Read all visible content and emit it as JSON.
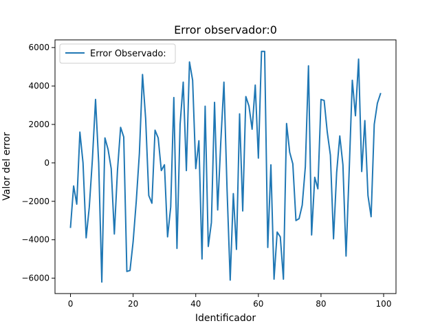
{
  "chart_data": {
    "type": "line",
    "title": "Error observador:0",
    "xlabel": "Identificador",
    "ylabel": "Valor del error",
    "xlim": [
      -4.95,
      103.95
    ],
    "ylim": [
      -6800,
      6400
    ],
    "xticks": [
      0,
      20,
      40,
      60,
      80,
      100
    ],
    "yticks": [
      -6000,
      -4000,
      -2000,
      0,
      2000,
      4000,
      6000
    ],
    "xtick_labels": [
      "0",
      "20",
      "40",
      "60",
      "80",
      "100"
    ],
    "ytick_labels": [
      "−6000",
      "−4000",
      "−2000",
      "0",
      "2000",
      "4000",
      "6000"
    ],
    "grid": false,
    "legend_position": "top-left",
    "series": [
      {
        "name": "Error Observado:",
        "color": "#1f77b4",
        "x": [
          0,
          1,
          2,
          3,
          4,
          5,
          6,
          7,
          8,
          9,
          10,
          11,
          12,
          13,
          14,
          15,
          16,
          17,
          18,
          19,
          20,
          21,
          22,
          23,
          24,
          25,
          26,
          27,
          28,
          29,
          30,
          31,
          32,
          33,
          34,
          35,
          36,
          37,
          38,
          39,
          40,
          41,
          42,
          43,
          44,
          45,
          46,
          47,
          48,
          49,
          50,
          51,
          52,
          53,
          54,
          55,
          56,
          57,
          58,
          59,
          60,
          61,
          62,
          63,
          64,
          65,
          66,
          67,
          68,
          69,
          70,
          71,
          72,
          73,
          74,
          75,
          76,
          77,
          78,
          79,
          80,
          81,
          82,
          83,
          84,
          85,
          86,
          87,
          88,
          89,
          90,
          91,
          92,
          93,
          94,
          95,
          96,
          97,
          98,
          99
        ],
        "values": [
          -3350,
          -1200,
          -2150,
          1600,
          0,
          -3900,
          -2300,
          200,
          3300,
          0,
          -6200,
          1300,
          700,
          -300,
          -3700,
          -400,
          1850,
          1350,
          -5650,
          -5600,
          -4100,
          -2000,
          500,
          4600,
          2300,
          -1700,
          -2100,
          1700,
          1300,
          -400,
          -100,
          -3850,
          -2300,
          3400,
          -4450,
          2000,
          4200,
          -400,
          5250,
          4300,
          -300,
          1150,
          -5000,
          2950,
          -4350,
          -3100,
          3150,
          -2450,
          1100,
          4200,
          -1400,
          -6100,
          -1600,
          -4500,
          2550,
          -2500,
          3450,
          2950,
          1750,
          4050,
          250,
          5800,
          5800,
          -4400,
          -100,
          -6050,
          -3600,
          -3850,
          -6050,
          2050,
          550,
          -50,
          -3000,
          -2900,
          -2200,
          -200,
          5050,
          -3750,
          -750,
          -1350,
          3300,
          3250,
          1600,
          400,
          -3950,
          -500,
          1400,
          -100,
          -4850,
          -400,
          4300,
          2450,
          5400,
          -450,
          2200,
          -1700,
          -2800,
          2000,
          3100,
          3600
        ]
      }
    ]
  }
}
